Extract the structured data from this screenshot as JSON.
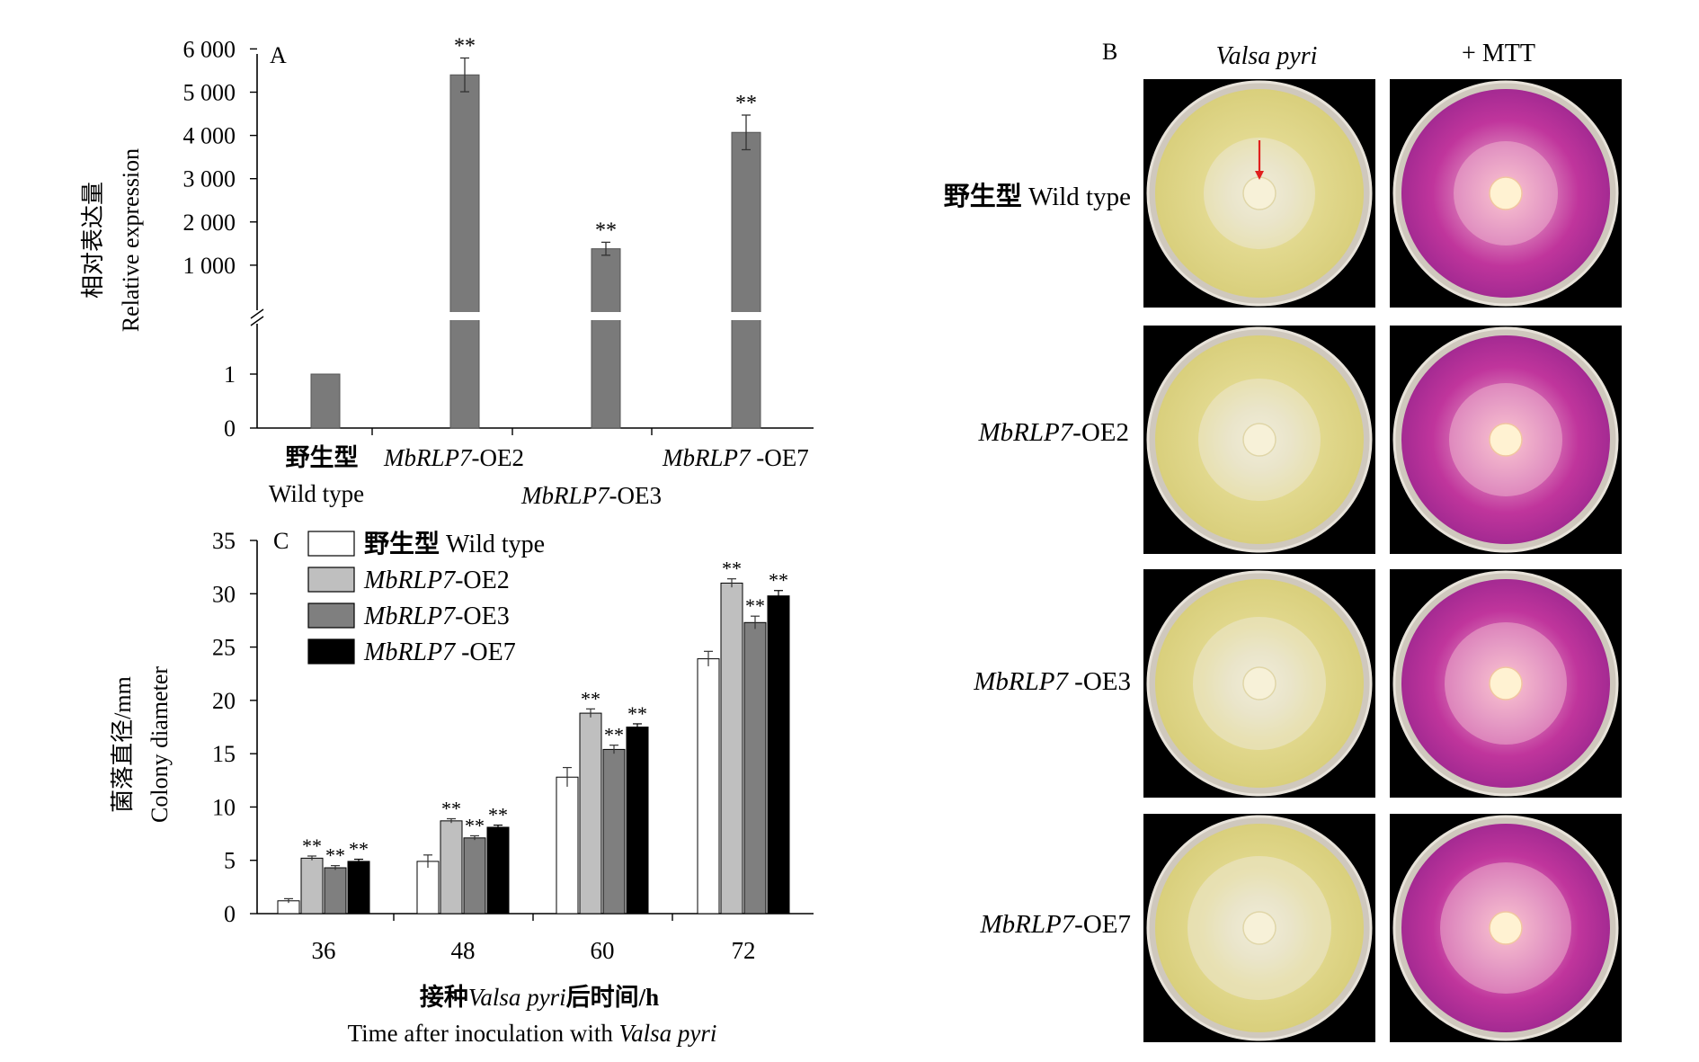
{
  "panelA": {
    "letter": "A",
    "ylabel_cn": "相对表达量",
    "ylabel_en": "Relative expression",
    "yticks_upper": [
      "1 000",
      "2 000",
      "3 000",
      "4 000",
      "5 000",
      "6 000"
    ],
    "yticks_lower": [
      "0",
      "1"
    ],
    "groups": [
      {
        "line1": "野生型",
        "line2": "Wild type"
      },
      {
        "gene": "MbRLP7",
        "suffix": "-OE2"
      },
      {
        "gene": "MbRLP7",
        "suffix": "-OE3"
      },
      {
        "gene": "MbRLP7",
        "suffix": " -OE7"
      }
    ],
    "sig": "**"
  },
  "panelB": {
    "letter": "B",
    "col1": "Valsa pyri",
    "col2": "+ MTT",
    "rows": [
      {
        "prefix": "野生型 ",
        "name": "Wild type"
      },
      {
        "gene": "MbRLP7",
        "suffix": "-OE2"
      },
      {
        "gene": "MbRLP7",
        "suffix": " -OE3"
      },
      {
        "gene": "MbRLP7",
        "suffix": "-OE7"
      }
    ]
  },
  "panelC": {
    "letter": "C",
    "ylabel_cn": "菌落直径/mm",
    "ylabel_en": "Colony diameter",
    "xlabel_cn_pre": "接种",
    "xlabel_cn_species": "Valsa pyri",
    "xlabel_cn_post": "后时间/h",
    "xlabel_en_pre": "Time after inoculation with ",
    "xlabel_en_species": "Valsa pyri",
    "legend": [
      {
        "prefix": "野生型 ",
        "label": "Wild type"
      },
      {
        "gene": "MbRLP7",
        "suffix": "-OE2"
      },
      {
        "gene": "MbRLP7",
        "suffix": "-OE3"
      },
      {
        "gene": "MbRLP7",
        "suffix": " -OE7"
      }
    ],
    "sig": "**"
  },
  "colors": {
    "barA": "#7a7a7a",
    "wild": "#ffffff",
    "oe2": "#bfbfbf",
    "oe3": "#7f7f7f",
    "oe7": "#000000",
    "dish_yellow": "#e6dc8e",
    "dish_magenta": "#c2399e"
  },
  "chart_data": [
    {
      "type": "bar",
      "panel": "A",
      "categories": [
        "野生型 Wild type",
        "MbRLP7-OE2",
        "MbRLP7-OE3",
        "MbRLP7 -OE7"
      ],
      "values": [
        1,
        5400,
        1380,
        4070
      ],
      "errors": [
        0,
        390,
        150,
        400
      ],
      "significance": [
        "",
        "**",
        "**",
        "**"
      ],
      "ylabel": "相对表达量 Relative expression",
      "ylim": [
        0,
        6000
      ],
      "broken_axis": true,
      "grid": false
    },
    {
      "type": "bar",
      "panel": "C",
      "categories": [
        "36",
        "48",
        "60",
        "72"
      ],
      "series": [
        {
          "name": "野生型 Wild type",
          "values": [
            1.2,
            4.9,
            12.8,
            23.9
          ],
          "errors": [
            0.2,
            0.6,
            0.9,
            0.7
          ],
          "sig": [
            false,
            false,
            false,
            false
          ]
        },
        {
          "name": "MbRLP7-OE2",
          "values": [
            5.2,
            8.7,
            18.8,
            31.0
          ],
          "errors": [
            0.2,
            0.2,
            0.4,
            0.4
          ],
          "sig": [
            true,
            true,
            true,
            true
          ]
        },
        {
          "name": "MbRLP7-OE3",
          "values": [
            4.3,
            7.1,
            15.4,
            27.3
          ],
          "errors": [
            0.2,
            0.2,
            0.4,
            0.6
          ],
          "sig": [
            true,
            true,
            true,
            true
          ]
        },
        {
          "name": "MbRLP7 -OE7",
          "values": [
            4.9,
            8.1,
            17.5,
            29.8
          ],
          "errors": [
            0.2,
            0.2,
            0.3,
            0.5
          ],
          "sig": [
            true,
            true,
            true,
            true
          ]
        }
      ],
      "xlabel": "接种Valsa pyri后时间/h Time after inoculation with Valsa pyri",
      "ylabel": "菌落直径/mm Colony diameter",
      "ylim": [
        0,
        35
      ],
      "yticks": [
        0,
        5,
        10,
        15,
        20,
        25,
        30,
        35
      ],
      "legend": "top-left",
      "grid": false
    }
  ]
}
